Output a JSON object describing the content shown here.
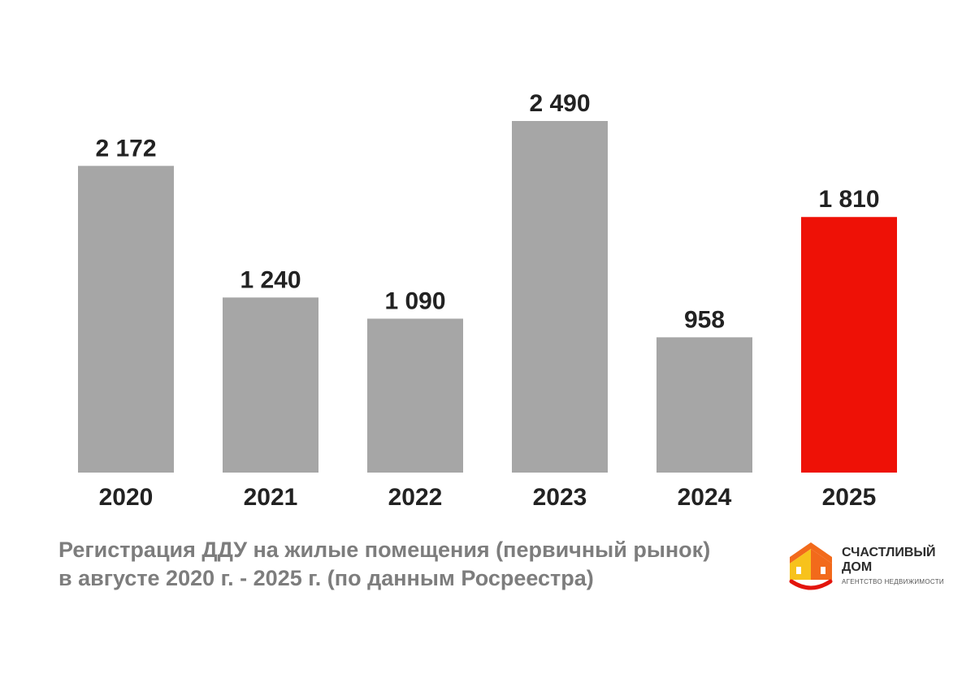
{
  "chart_data": {
    "type": "bar",
    "categories": [
      "2020",
      "2021",
      "2022",
      "2023",
      "2024",
      "2025"
    ],
    "values": [
      2172,
      1240,
      1090,
      2490,
      958,
      1810
    ],
    "value_labels": [
      "2 172",
      "1 240",
      "1 090",
      "2 490",
      "958",
      "1 810"
    ],
    "title": "",
    "xlabel": "",
    "ylabel": "",
    "ylim": [
      0,
      2490
    ],
    "grid": false,
    "highlight_index": 5,
    "colors": {
      "bar": "#a6a6a6",
      "highlight": "#ee1106",
      "text": "#222222"
    }
  },
  "caption": {
    "line1": "Регистрация ДДУ на жилые помещения (первичный рынок)",
    "line2": "в августе 2020 г. - 2025 г. (по данным Росреестра)"
  },
  "logo": {
    "name_line1": "СЧАСТЛИВЫЙ",
    "name_line2": "ДОМ",
    "tagline": "АГЕНТСТВО НЕДВИЖИМОСТИ",
    "icon": "house-smile-icon",
    "colors": {
      "roof": "#f26a1b",
      "wall": "#f7c21c",
      "smile": "#e3140c"
    }
  }
}
